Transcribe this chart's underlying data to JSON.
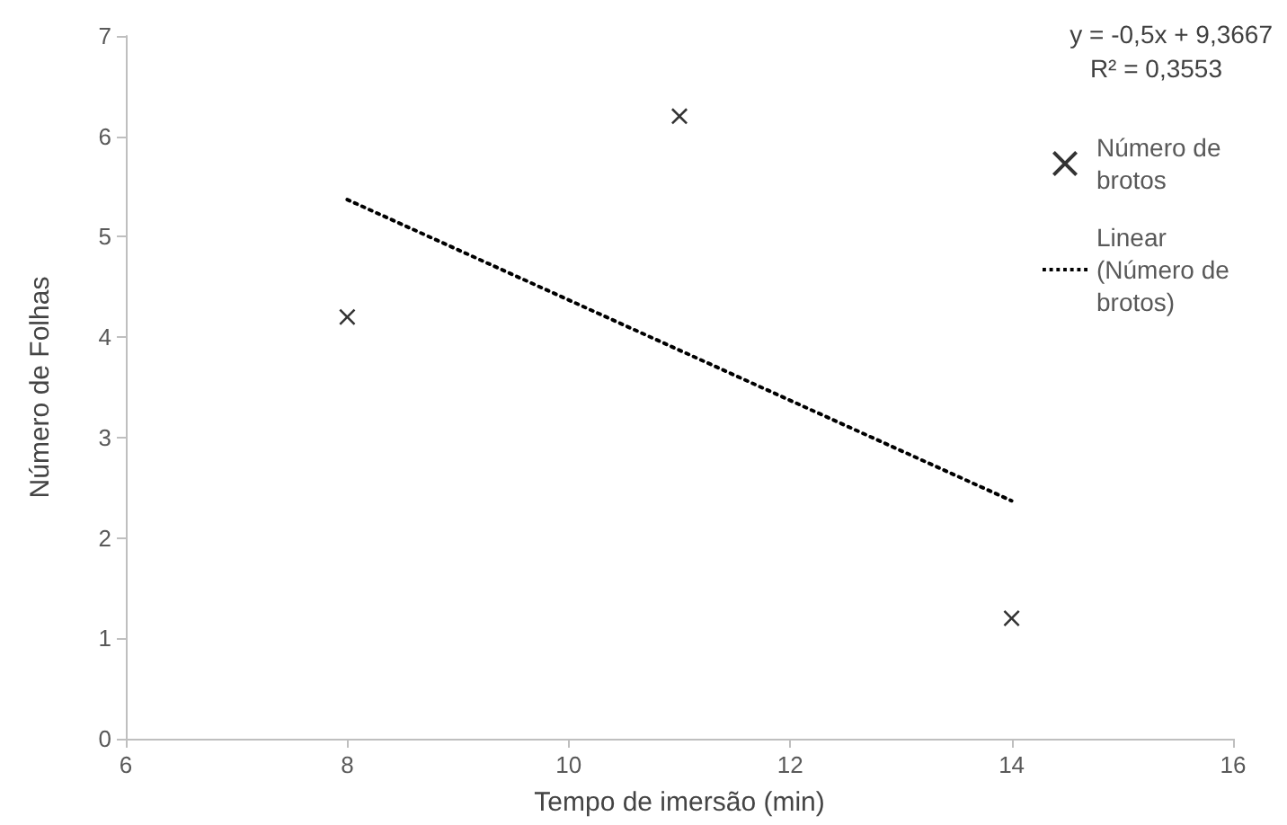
{
  "chart_data": {
    "type": "scatter",
    "xlabel": "Tempo de imersão (min)",
    "ylabel": "Número de Folhas",
    "annotations": [
      "y = -0,5x + 9,3667",
      "R² = 0,3553"
    ],
    "series": [
      {
        "name": "Número de brotos",
        "color": "#000000",
        "x": [
          8,
          11,
          14
        ],
        "values": [
          4.2,
          6.2,
          1.2
        ],
        "marker": "cross"
      },
      {
        "name": "Linear (Número de brotos)",
        "type": "line",
        "color": "#000000",
        "x": [
          8,
          14
        ],
        "values": [
          5.37,
          2.37
        ],
        "line_style": "dotted",
        "marker": "none"
      }
    ],
    "xlim": [
      6,
      16
    ],
    "xticks": [
      6,
      8,
      10,
      12,
      14,
      16
    ],
    "ylim": [
      0,
      7
    ],
    "yticks": [
      0,
      1,
      2,
      3,
      4,
      5,
      6,
      7
    ],
    "grid": false,
    "legend": "top right"
  }
}
